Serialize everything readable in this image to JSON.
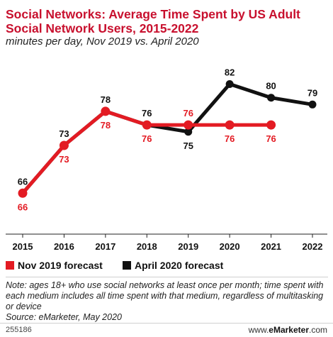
{
  "title": "Social Networks: Average Time Spent by US Adult Social Network Users, 2015-2022",
  "subtitle": "minutes per day, Nov 2019 vs. April 2020",
  "legend": {
    "nov": "Nov 2019 forecast",
    "apr": "April 2020 forecast"
  },
  "note": "Note: ages 18+ who use social networks at least once per month; time spent with each medium includes all time spent with that medium, regardless of multitasking or device",
  "source": "Source: eMarketer, May 2020",
  "footer": {
    "chart_id": "255186",
    "brand_prefix": "www.",
    "brand_name": "eMarketer",
    "brand_suffix": ".com"
  },
  "colors": {
    "nov": "#e31b23",
    "apr": "#111111"
  },
  "chart_data": {
    "type": "line",
    "x": [
      "2015",
      "2016",
      "2017",
      "2018",
      "2019",
      "2020",
      "2021",
      "2022"
    ],
    "ylim": [
      60,
      86
    ],
    "grid": false,
    "legend_position": "bottom-left",
    "series": [
      {
        "name": "Nov 2019 forecast",
        "values": [
          66,
          73,
          78,
          76,
          76,
          76,
          76,
          null
        ],
        "labels": [
          "66",
          "73",
          "78",
          "76",
          "76",
          "76",
          "76",
          null
        ]
      },
      {
        "name": "April 2020 forecast",
        "values": [
          66,
          73,
          78,
          76,
          75,
          82,
          80,
          79
        ],
        "labels": [
          "66",
          "73",
          "78",
          "76",
          "75",
          "82",
          "80",
          "79"
        ]
      }
    ]
  }
}
